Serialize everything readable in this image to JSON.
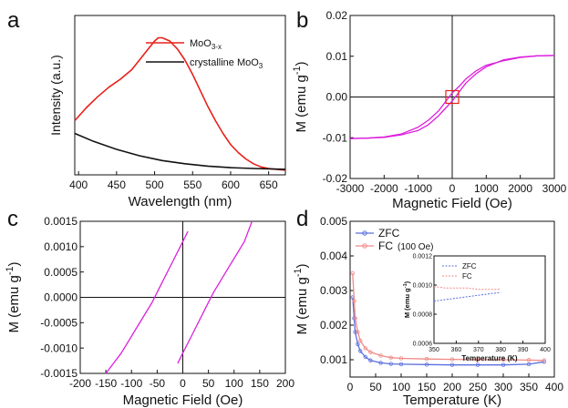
{
  "chart_data": [
    {
      "panel": "a",
      "type": "line",
      "xlabel": "Wavelength (nm)",
      "ylabel": "Intensity (a.u.)",
      "xlim": [
        395,
        672
      ],
      "ylim": [
        0,
        1
      ],
      "xticks": [
        "400",
        "450",
        "500",
        "550",
        "600",
        "650"
      ],
      "yticks": [],
      "legend_placement": "top-right",
      "grid": false,
      "series": [
        {
          "name": "MoO3-x",
          "color": "#e8201a",
          "x": [
            395,
            410,
            425,
            440,
            455,
            470,
            480,
            490,
            500,
            505,
            510,
            520,
            530,
            540,
            550,
            560,
            570,
            580,
            590,
            600,
            610,
            620,
            630,
            640,
            650,
            660,
            672
          ],
          "y": [
            0.34,
            0.42,
            0.49,
            0.55,
            0.6,
            0.66,
            0.72,
            0.78,
            0.84,
            0.86,
            0.86,
            0.84,
            0.79,
            0.72,
            0.63,
            0.53,
            0.43,
            0.34,
            0.26,
            0.19,
            0.14,
            0.1,
            0.07,
            0.05,
            0.04,
            0.035,
            0.03
          ]
        },
        {
          "name": "crystalline MoO3",
          "color": "#111111",
          "x": [
            395,
            420,
            450,
            480,
            510,
            540,
            570,
            600,
            630,
            672
          ],
          "y": [
            0.26,
            0.21,
            0.16,
            0.12,
            0.09,
            0.07,
            0.055,
            0.045,
            0.04,
            0.035
          ]
        }
      ]
    },
    {
      "panel": "b",
      "type": "line",
      "xlabel": "Magnetic Field (Oe)",
      "ylabel": "M (emu g",
      "ylabel_sup": "-1",
      "ylabel_end": ")",
      "xlim": [
        -3000,
        3000
      ],
      "ylim": [
        -0.02,
        0.02
      ],
      "xticks": [
        "-3000",
        "-2000",
        "-1000",
        "0",
        "1000",
        "2000",
        "3000"
      ],
      "yticks": [
        "-0.02",
        "-0.01",
        "0.00",
        "0.01",
        "0.02"
      ],
      "grid": false,
      "zero_axes": true,
      "highlight_box": true,
      "series": [
        {
          "name": "",
          "color": "#dd1fdd",
          "x": [
            -3000,
            -2500,
            -2000,
            -1500,
            -1000,
            -700,
            -400,
            -200,
            0,
            200,
            400,
            700,
            1000,
            1500,
            2000,
            2500,
            3000
          ],
          "y": [
            -0.0102,
            -0.0101,
            -0.0099,
            -0.0093,
            -0.0082,
            -0.0068,
            -0.0046,
            -0.0028,
            -0.001,
            0.0012,
            0.0034,
            0.0057,
            0.0074,
            0.0091,
            0.0098,
            0.0101,
            0.0102
          ]
        },
        {
          "name": "",
          "color": "#dd1fdd",
          "x": [
            3000,
            2500,
            2000,
            1500,
            1000,
            700,
            400,
            200,
            0,
            -200,
            -400,
            -700,
            -1000,
            -1500,
            -2000,
            -2500,
            -3000
          ],
          "y": [
            0.0102,
            0.0101,
            0.0097,
            0.0089,
            0.0078,
            0.0064,
            0.0044,
            0.0026,
            0.001,
            -0.0012,
            -0.0034,
            -0.0057,
            -0.0074,
            -0.0091,
            -0.0098,
            -0.0101,
            -0.0102
          ]
        }
      ]
    },
    {
      "panel": "c",
      "type": "line",
      "xlabel": "Magnetic Field (Oe)",
      "ylabel": "M (emu g",
      "ylabel_sup": "-1",
      "ylabel_end": ")",
      "xlim": [
        -200,
        200
      ],
      "ylim": [
        -0.0015,
        0.0015
      ],
      "xticks": [
        "-200",
        "-150",
        "-100",
        "-50",
        "0",
        "50",
        "100",
        "150",
        "200"
      ],
      "yticks": [
        "-0.0015",
        "-0.0010",
        "-0.0005",
        "0.0000",
        "0.0005",
        "0.0010",
        "0.0015"
      ],
      "grid": false,
      "zero_axes": true,
      "series": [
        {
          "name": "",
          "color": "#dd1fdd",
          "x": [
            -150,
            -120,
            -90,
            -60,
            -50,
            -40,
            -20,
            0,
            10
          ],
          "y": [
            -0.0015,
            -0.0011,
            -0.0006,
            -0.0001,
            0.0001,
            0.0003,
            0.0007,
            0.0011,
            0.0013
          ]
        },
        {
          "name": "",
          "color": "#dd1fdd",
          "x": [
            -10,
            0,
            20,
            40,
            50,
            60,
            90,
            120,
            135
          ],
          "y": [
            -0.0013,
            -0.0011,
            -0.0007,
            -0.0003,
            -0.0001,
            0.0001,
            0.0006,
            0.0011,
            0.0015
          ]
        }
      ]
    },
    {
      "panel": "d",
      "type": "line",
      "xlabel": "Temperature (K)",
      "ylabel": "M (emu g",
      "ylabel_sup": "-1",
      "ylabel_end": ")",
      "xlim": [
        0,
        400
      ],
      "ylim": [
        0.0005,
        0.005
      ],
      "xticks": [
        "0",
        "50",
        "100",
        "150",
        "200",
        "250",
        "300",
        "350",
        "400"
      ],
      "yticks": [
        "0.001",
        "0.002",
        "0.003",
        "0.004",
        "0.005"
      ],
      "grid": false,
      "legend_placement": "top-left",
      "series": [
        {
          "name": "ZFC",
          "color": "#5a6fe0",
          "x": [
            5,
            8,
            10,
            15,
            20,
            30,
            40,
            60,
            80,
            100,
            150,
            200,
            250,
            300,
            350,
            380
          ],
          "y": [
            0.0028,
            0.0022,
            0.0018,
            0.00145,
            0.00125,
            0.00108,
            0.00098,
            0.00091,
            0.00088,
            0.00087,
            0.00086,
            0.00085,
            0.00085,
            0.00085,
            0.00087,
            0.00094
          ]
        },
        {
          "name": "FC",
          "name_suffix": "(100 Oe)",
          "color": "#f08a86",
          "x": [
            5,
            8,
            10,
            15,
            20,
            30,
            40,
            60,
            80,
            100,
            150,
            200,
            250,
            300,
            350,
            380
          ],
          "y": [
            0.0035,
            0.0027,
            0.0022,
            0.0018,
            0.00155,
            0.00133,
            0.00122,
            0.00112,
            0.00106,
            0.00104,
            0.00102,
            0.00101,
            0.001,
            0.001,
            0.00099,
            0.00098
          ]
        }
      ],
      "inset": {
        "xlabel": "Temperature (K)",
        "ylabel": "M (emu g",
        "ylabel_sup": "-1",
        "ylabel_end": ")",
        "xlim": [
          350,
          400
        ],
        "ylim": [
          0.0006,
          0.0012
        ],
        "xticks": [
          "350",
          "360",
          "370",
          "380",
          "390",
          "400"
        ],
        "yticks": [
          "0.0006",
          "0.0008",
          "0.0010",
          "0.0012"
        ],
        "series": [
          {
            "name": "ZFC",
            "color": "#5a6fe0",
            "x": [
              350,
              355,
              360,
              365,
              370,
              375,
              380
            ],
            "y": [
              0.00089,
              0.0009,
              0.00091,
              0.00092,
              0.00093,
              0.00094,
              0.00095
            ]
          },
          {
            "name": "FC",
            "color": "#f08a86",
            "x": [
              350,
              355,
              360,
              365,
              370,
              375,
              380
            ],
            "y": [
              0.00099,
              0.00098,
              0.00098,
              0.00098,
              0.00097,
              0.00097,
              0.00097
            ]
          }
        ]
      }
    }
  ],
  "panel_labels": [
    "a",
    "b",
    "c",
    "d"
  ]
}
